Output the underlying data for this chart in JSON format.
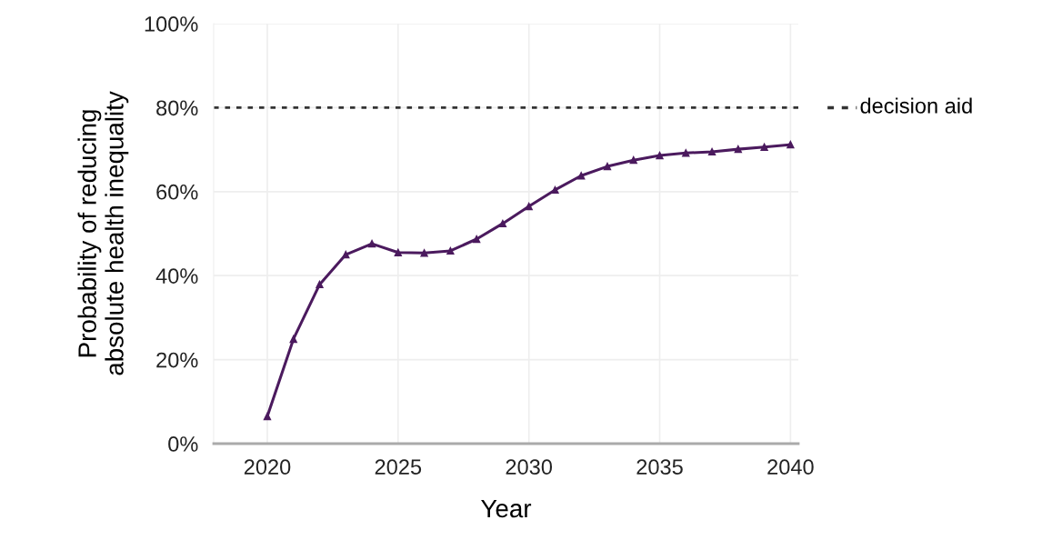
{
  "chart_data": {
    "type": "line",
    "xlabel": "Year",
    "ylabel": "Probability of reducing\nabsolute health inequality",
    "x": [
      2020,
      2021,
      2022,
      2023,
      2024,
      2025,
      2026,
      2027,
      2028,
      2029,
      2030,
      2031,
      2032,
      2033,
      2034,
      2035,
      2036,
      2037,
      2038,
      2039,
      2040
    ],
    "series": [
      {
        "color": "#4b1a5e",
        "values": [
          6.5,
          24.9,
          37.9,
          45,
          47.6,
          45.5,
          45.4,
          45.9,
          48.7,
          52.4,
          56.5,
          60.4,
          63.8,
          66,
          67.5,
          68.6,
          69.2,
          69.5,
          70.1,
          70.6,
          71.2
        ]
      }
    ],
    "marker": "triangle",
    "line_style": "solid",
    "xlim": [
      2017.95,
      2040.3
    ],
    "xticks": [
      2020,
      2025,
      2030,
      2035,
      2040
    ],
    "ylim": [
      0,
      100
    ],
    "yticks": [
      {
        "value": 0,
        "label": "0%"
      },
      {
        "value": 20,
        "label": "20%"
      },
      {
        "value": 40,
        "label": "40%"
      },
      {
        "value": 60,
        "label": "60%"
      },
      {
        "value": 80,
        "label": "80%"
      },
      {
        "value": 100,
        "label": "100%"
      }
    ],
    "grid": true,
    "ref_lines": [
      {
        "axis": "y",
        "value": 80,
        "label": "decision aid",
        "color": "#333333",
        "line_style": "dotted"
      }
    ]
  }
}
